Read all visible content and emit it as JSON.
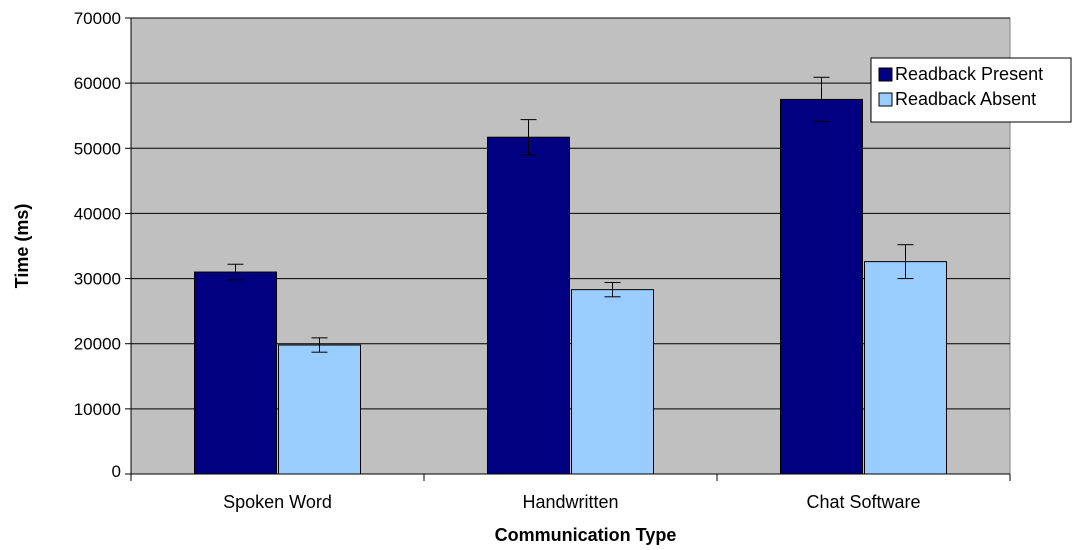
{
  "chart_data": {
    "type": "bar",
    "title": "",
    "xlabel": "Communication Type",
    "ylabel": "Time (ms)",
    "categories": [
      "Spoken Word",
      "Handwritten",
      "Chat Software"
    ],
    "ylim": [
      0,
      70000
    ],
    "yticks": [
      {
        "value": 0,
        "label": "0"
      },
      {
        "value": 10000,
        "label": "10000"
      },
      {
        "value": 20000,
        "label": "20000"
      },
      {
        "value": 30000,
        "label": "30000"
      },
      {
        "value": 40000,
        "label": "40000"
      },
      {
        "value": 50000,
        "label": "50000"
      },
      {
        "value": 60000,
        "label": "60000"
      },
      {
        "value": 70000,
        "label": "70000"
      }
    ],
    "grid": true,
    "legend_position": "top-right",
    "plot_background": "#c0c0c0",
    "series": [
      {
        "name": "Readback Present",
        "color": "#000080",
        "values": [
          31000,
          51700,
          57500
        ],
        "errors": [
          1200,
          2700,
          3400
        ]
      },
      {
        "name": "Readback Absent",
        "color": "#99ccff",
        "values": [
          19800,
          28300,
          32600
        ],
        "errors": [
          1100,
          1100,
          2600
        ]
      }
    ]
  }
}
